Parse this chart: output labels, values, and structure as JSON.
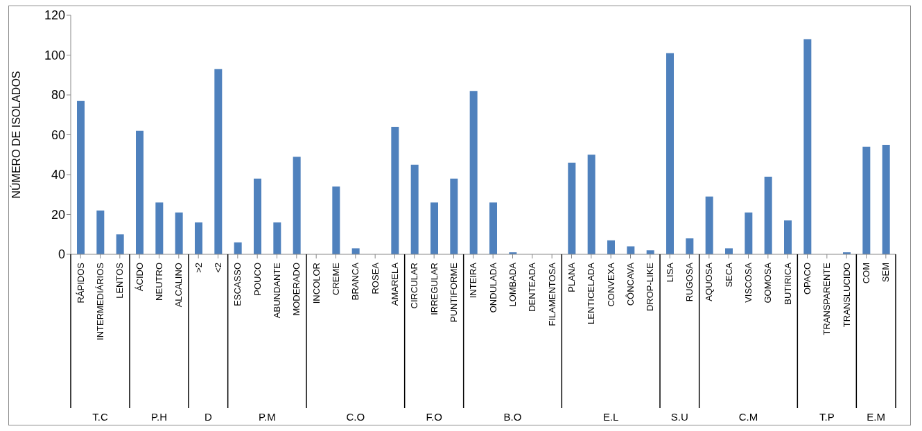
{
  "chart_data": {
    "type": "bar",
    "ylabel": "NÚMERO DE ISOLADOS",
    "categories": [
      "RÁPIDOS",
      "INTERMEDIÁRIOS",
      "LENTOS",
      "ÁCIDO",
      "NEUTRO",
      "ALCALINO",
      ">2",
      "<2",
      "ESCASSO",
      "POUCO",
      "ABUNDANTE",
      "MODERADO",
      "INCOLOR",
      "CREME",
      "BRANCA",
      "ROSEA",
      "AMARELA",
      "CIRCULAR",
      "IRREGULAR",
      "PUNTIFORME",
      "INTEIRA",
      "ONDULADA",
      "LOMBADA",
      "DENTEADA",
      "FILAMENTOSA",
      "PLANA",
      "LENTICELADA",
      "CONVEXA",
      "CÔNCAVA",
      "DROP-LIKE",
      "LISA",
      "RUGOSA",
      "AQUOSA",
      "SECA",
      "VISCOSA",
      "GOMOSA",
      "BUTIRICA",
      "OPACO",
      "TRANSPARENTE",
      "TRANSLUCIDO",
      "COM",
      "SEM"
    ],
    "values": [
      77,
      22,
      10,
      62,
      26,
      21,
      16,
      93,
      6,
      38,
      16,
      49,
      0,
      34,
      3,
      0,
      64,
      45,
      26,
      38,
      82,
      26,
      1,
      0,
      0,
      46,
      50,
      7,
      4,
      2,
      101,
      8,
      29,
      3,
      21,
      39,
      17,
      108,
      0,
      1,
      54,
      55
    ],
    "color": "#4f81bd",
    "ylim": [
      0,
      120
    ],
    "yticks": [
      0,
      20,
      40,
      60,
      80,
      100,
      120
    ],
    "grid": false,
    "legend": false,
    "annotations": [
      "T.C",
      "P.H",
      "D",
      "P.M",
      "C.O",
      "F.O",
      "B.O",
      "E.L",
      "S.U",
      "C.M",
      "T.P",
      "E.M"
    ]
  }
}
